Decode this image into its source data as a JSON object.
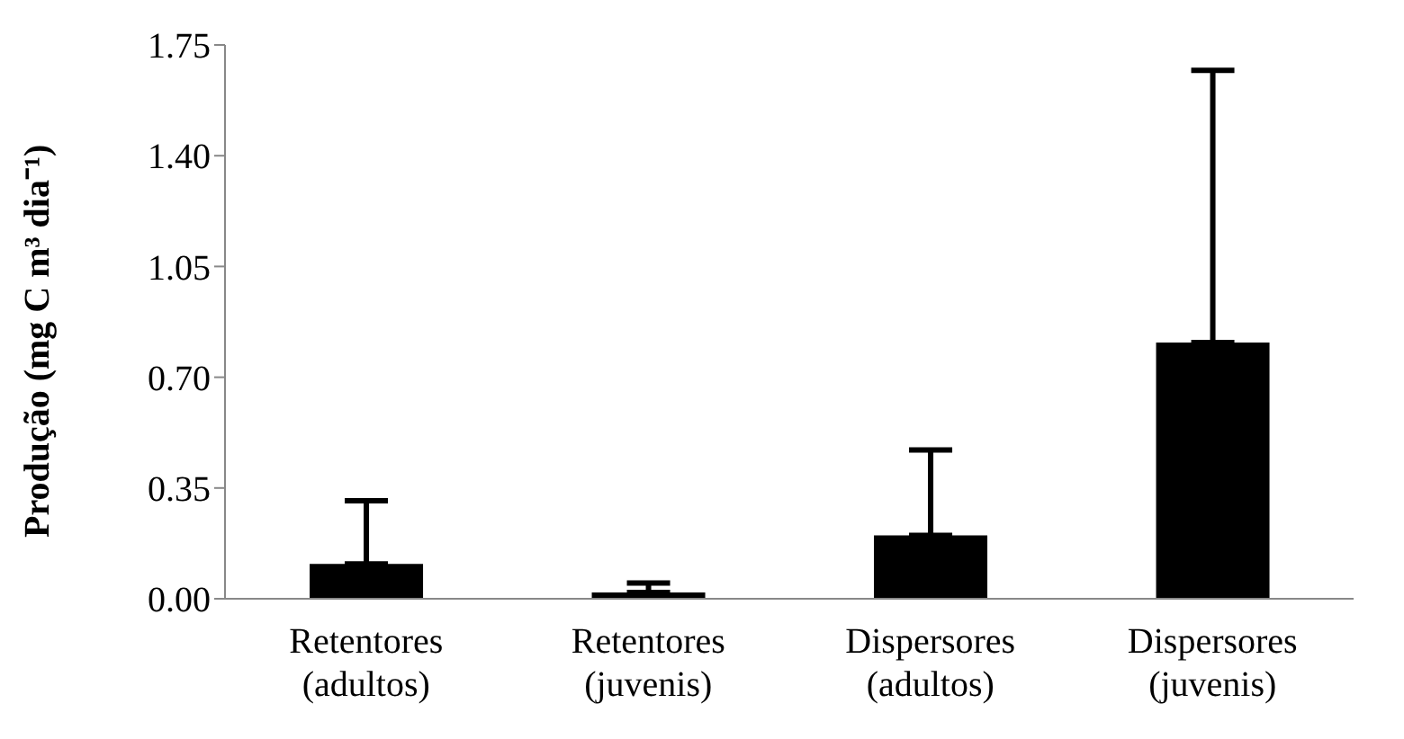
{
  "chart_data": {
    "type": "bar",
    "ylabel": "Produção (mg C m³ dia⁻¹)",
    "categories": [
      "Retentores (adultos)",
      "Retentores (juvenis)",
      "Dispersores (adultos)",
      "Dispersores (juvenis)"
    ],
    "values": [
      0.11,
      0.02,
      0.2,
      0.81
    ],
    "errors": [
      [
        0.11,
        0.31
      ],
      [
        0.02,
        0.05
      ],
      [
        0.2,
        0.47
      ],
      [
        0.81,
        1.67
      ]
    ],
    "color": "#000000",
    "ylim": [
      0,
      1.75
    ],
    "yticks": [
      {
        "value": 0,
        "label": "0.00"
      },
      {
        "value": 0.35,
        "label": "0.35"
      },
      {
        "value": 0.7,
        "label": "0.70"
      },
      {
        "value": 1.05,
        "label": "1.05"
      },
      {
        "value": 1.4,
        "label": "1.40"
      },
      {
        "value": 1.75,
        "label": "1.75"
      }
    ],
    "grid": false,
    "legend": false
  }
}
